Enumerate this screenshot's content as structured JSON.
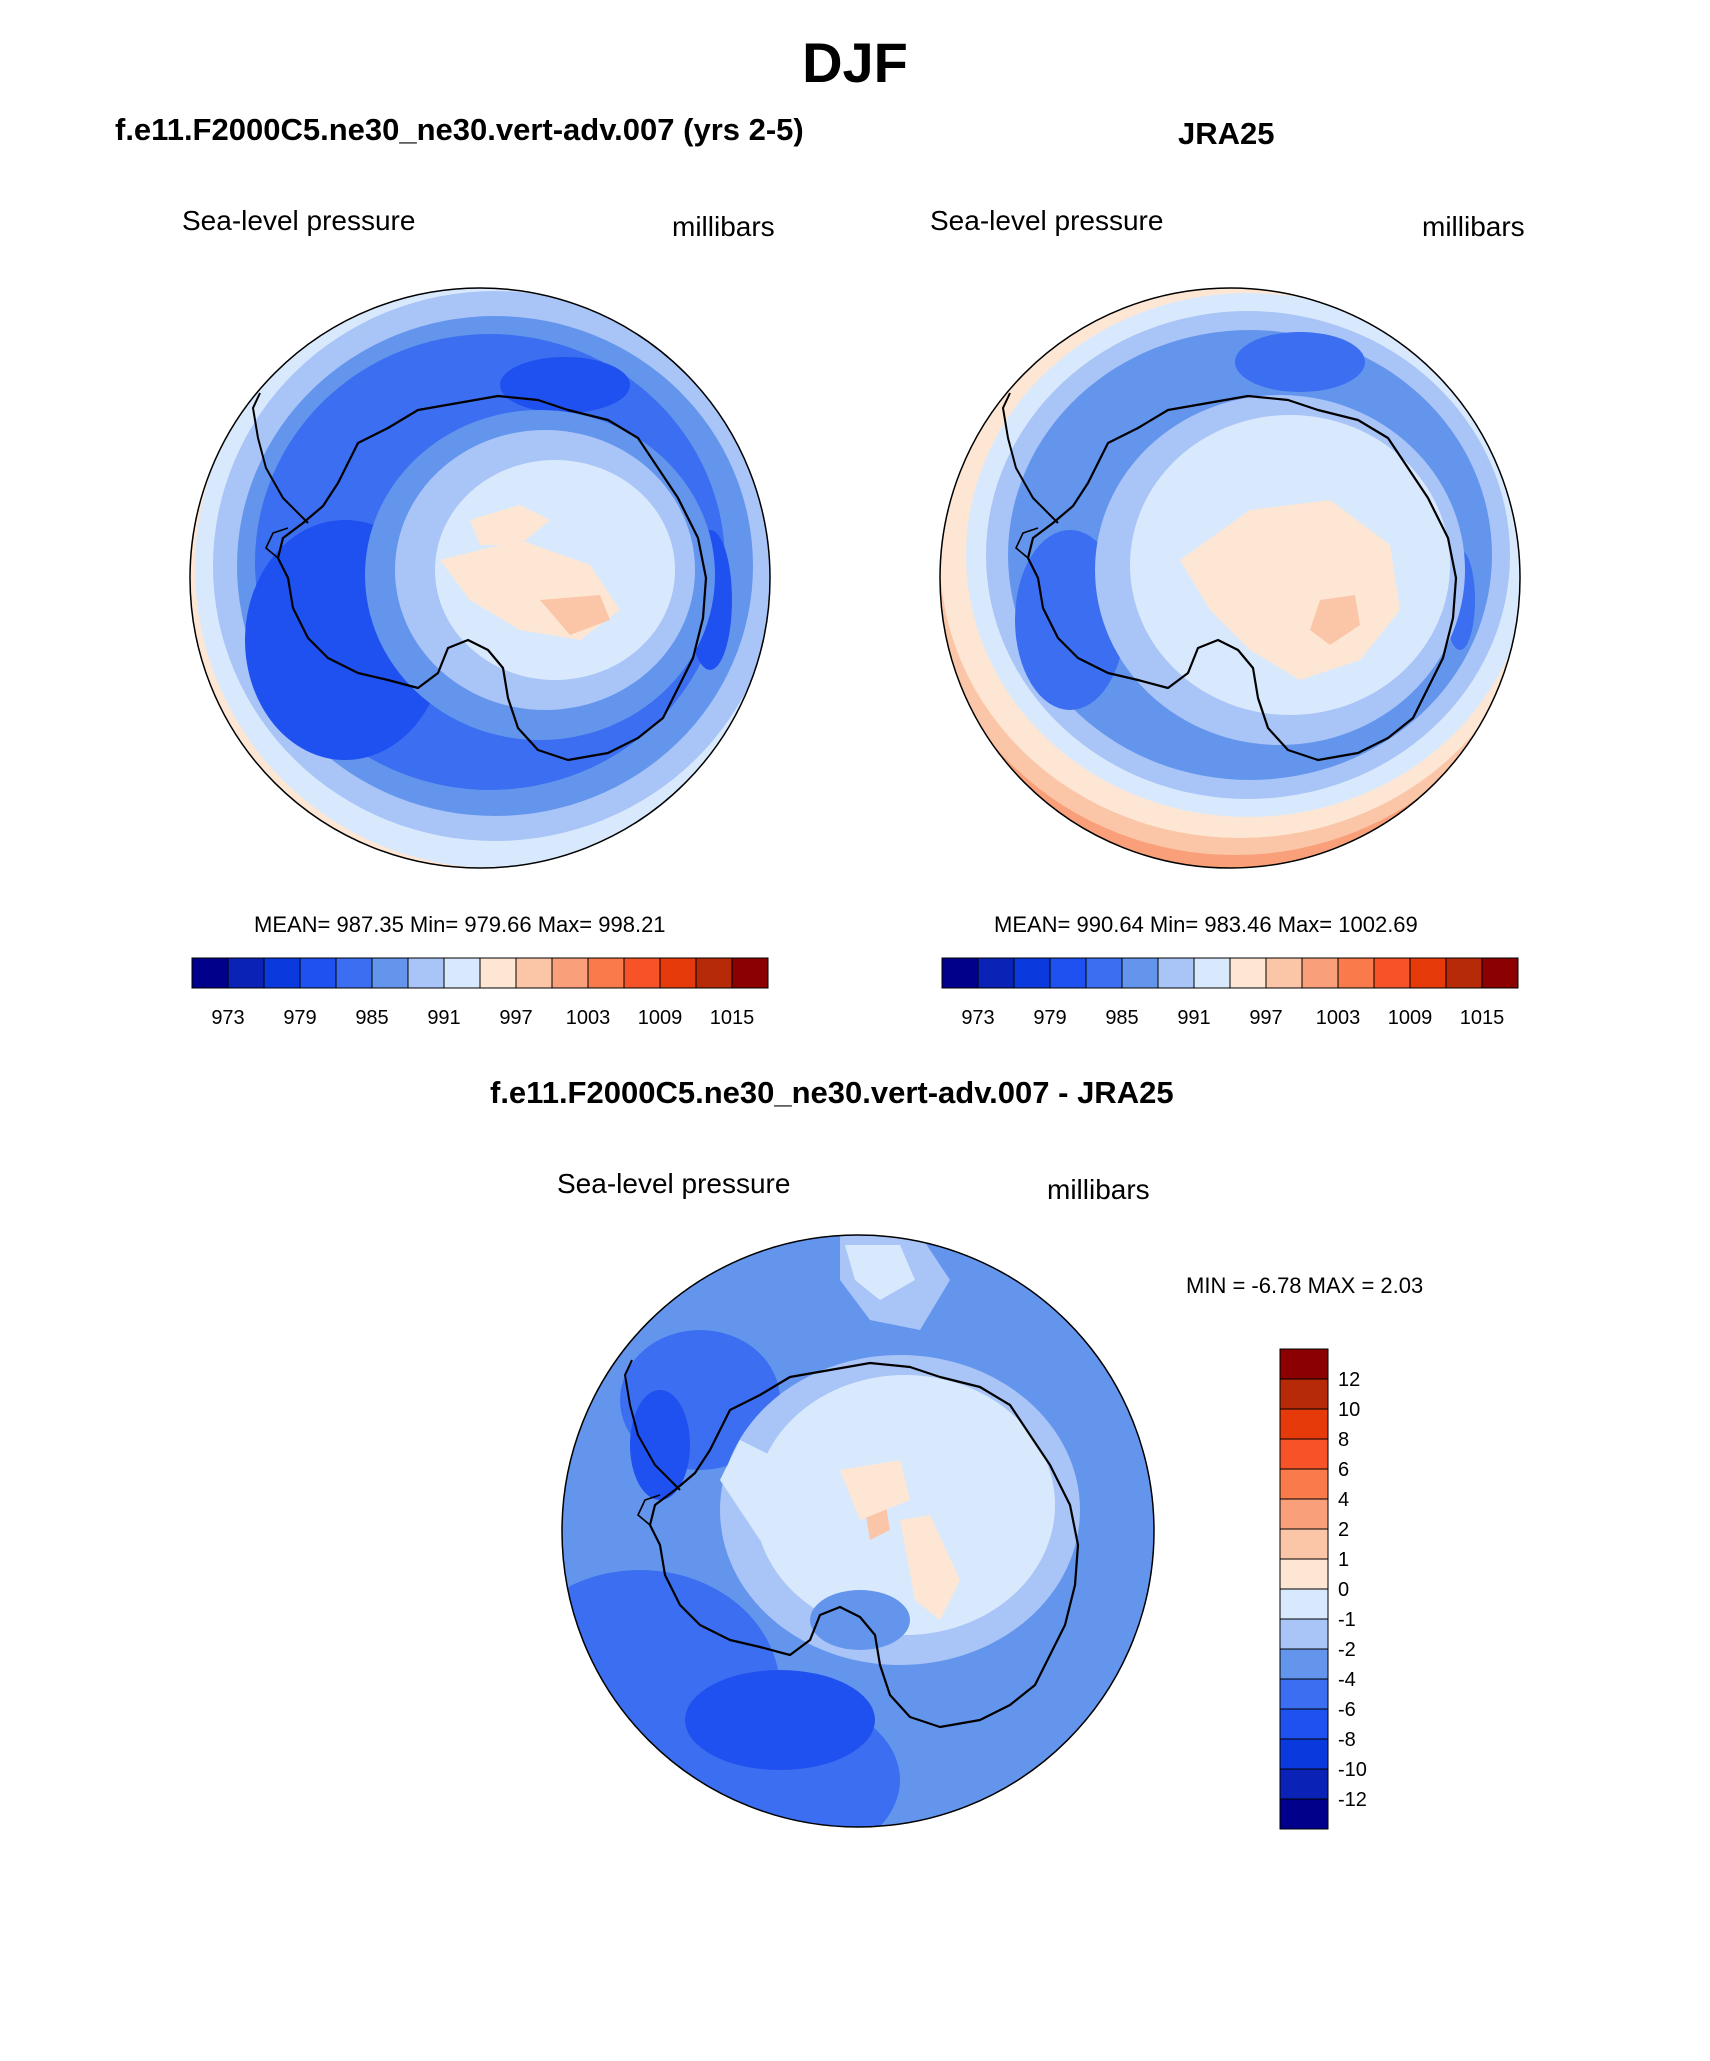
{
  "main_title": "DJF",
  "palette": [
    "#00008b",
    "#0a22b5",
    "#0a3ade",
    "#1f50f0",
    "#3b6ef0",
    "#6495ed",
    "#a9c4f7",
    "#d9e9fd",
    "#fde6d3",
    "#fbc6a8",
    "#f9a07b",
    "#f97a4a",
    "#f65428",
    "#e63a0a",
    "#b72a08",
    "#8b0000"
  ],
  "panels": [
    {
      "title": "f.e11.F2000C5.ne30_ne30.vert-adv.007 (yrs 2-5)",
      "left_label": "Sea-level pressure",
      "right_label": "millibars",
      "stats": "MEAN= 987.35  Min= 979.66  Max= 998.21",
      "colorbar_labels": [
        "973",
        "979",
        "985",
        "991",
        "997",
        "1003",
        "1009",
        "1015"
      ]
    },
    {
      "title": "JRA25",
      "left_label": "Sea-level pressure",
      "right_label": "millibars",
      "stats": "MEAN= 990.64  Min= 983.46  Max= 1002.69",
      "colorbar_labels": [
        "973",
        "979",
        "985",
        "991",
        "997",
        "1003",
        "1009",
        "1015"
      ]
    },
    {
      "title": "f.e11.F2000C5.ne30_ne30.vert-adv.007 - JRA25",
      "left_label": "Sea-level pressure",
      "right_label": "millibars",
      "stats": "MIN =  -6.78 MAX =   2.03",
      "colorbar_labels": [
        "12",
        "10",
        "8",
        "6",
        "4",
        "2",
        "1",
        "0",
        "-1",
        "-2",
        "-4",
        "-6",
        "-8",
        "-10",
        "-12"
      ]
    }
  ]
}
